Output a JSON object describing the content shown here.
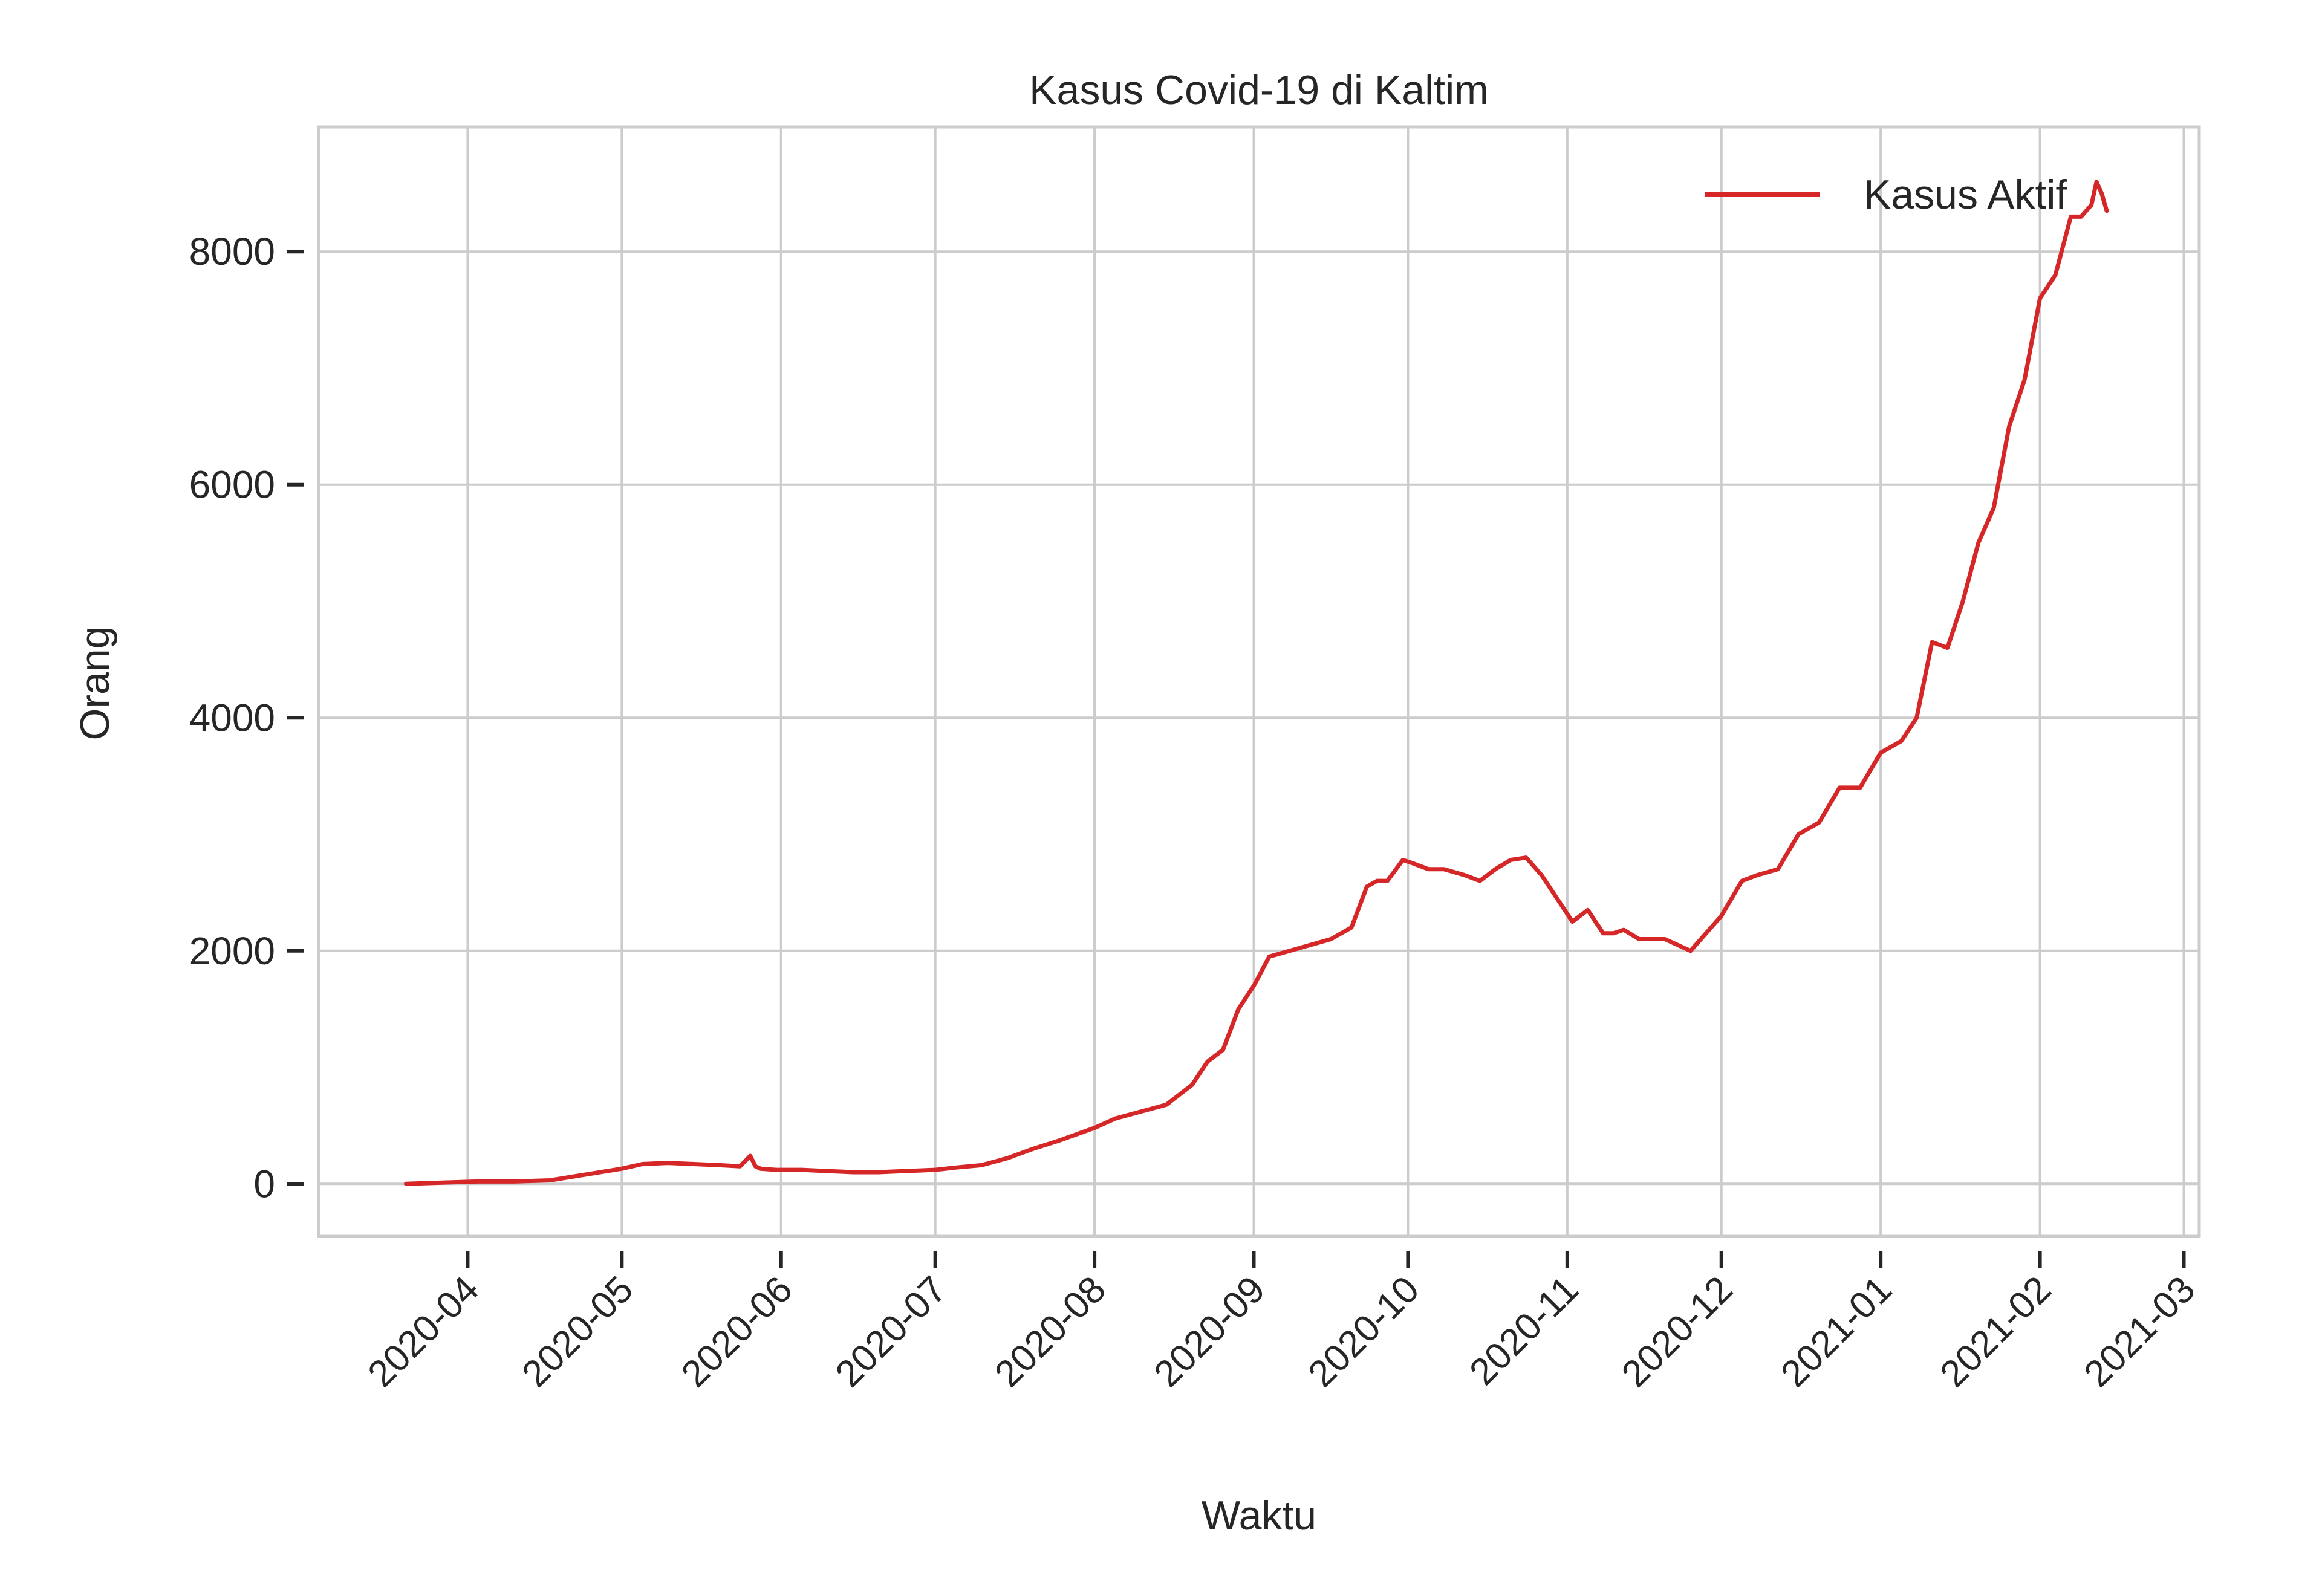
{
  "chart_data": {
    "type": "line",
    "title": "Kasus Covid-19 di Kaltim",
    "xlabel": "Waktu",
    "ylabel": "Orang",
    "ylim": [
      -450,
      9070
    ],
    "xlim": [
      "2020-03-03",
      "2021-03-04"
    ],
    "grid": true,
    "legend_position": "top-right",
    "line_color": "#d62728",
    "x_ticks": [
      "2020-04",
      "2020-05",
      "2020-06",
      "2020-07",
      "2020-08",
      "2020-09",
      "2020-10",
      "2020-11",
      "2020-12",
      "2021-01",
      "2021-02",
      "2021-03"
    ],
    "x_tick_dates": [
      "2020-04-01",
      "2020-05-01",
      "2020-06-01",
      "2020-07-01",
      "2020-08-01",
      "2020-09-01",
      "2020-10-01",
      "2020-11-01",
      "2020-12-01",
      "2021-01-01",
      "2021-02-01",
      "2021-03-01"
    ],
    "y_ticks": [
      0,
      2000,
      4000,
      6000,
      8000
    ],
    "y_tick_labels": [
      "0",
      "2000",
      "4000",
      "6000",
      "8000"
    ],
    "series": [
      {
        "name": "Kasus Aktif",
        "x": [
          "2020-03-20",
          "2020-03-27",
          "2020-04-03",
          "2020-04-10",
          "2020-04-17",
          "2020-04-24",
          "2020-05-01",
          "2020-05-05",
          "2020-05-10",
          "2020-05-15",
          "2020-05-20",
          "2020-05-24",
          "2020-05-26",
          "2020-05-27",
          "2020-05-28",
          "2020-05-31",
          "2020-06-05",
          "2020-06-10",
          "2020-06-15",
          "2020-06-20",
          "2020-06-25",
          "2020-07-01",
          "2020-07-05",
          "2020-07-10",
          "2020-07-15",
          "2020-07-20",
          "2020-07-25",
          "2020-08-01",
          "2020-08-05",
          "2020-08-10",
          "2020-08-15",
          "2020-08-20",
          "2020-08-23",
          "2020-08-26",
          "2020-08-29",
          "2020-09-01",
          "2020-09-04",
          "2020-09-08",
          "2020-09-12",
          "2020-09-16",
          "2020-09-20",
          "2020-09-23",
          "2020-09-25",
          "2020-09-27",
          "2020-09-30",
          "2020-10-02",
          "2020-10-05",
          "2020-10-08",
          "2020-10-12",
          "2020-10-15",
          "2020-10-18",
          "2020-10-21",
          "2020-10-24",
          "2020-10-27",
          "2020-10-30",
          "2020-11-02",
          "2020-11-05",
          "2020-11-08",
          "2020-11-10",
          "2020-11-12",
          "2020-11-15",
          "2020-11-20",
          "2020-11-25",
          "2020-11-27",
          "2020-11-29",
          "2020-12-01",
          "2020-12-05",
          "2020-12-08",
          "2020-12-12",
          "2020-12-16",
          "2020-12-20",
          "2020-12-24",
          "2020-12-28",
          "2021-01-01",
          "2021-01-05",
          "2021-01-08",
          "2021-01-11",
          "2021-01-14",
          "2021-01-17",
          "2021-01-20",
          "2021-01-23",
          "2021-01-26",
          "2021-01-29",
          "2021-02-01",
          "2021-02-04",
          "2021-02-07",
          "2021-02-09",
          "2021-02-11",
          "2021-02-12",
          "2021-02-13",
          "2021-02-14"
        ],
        "y": [
          0,
          10,
          20,
          20,
          30,
          80,
          130,
          170,
          180,
          170,
          160,
          150,
          240,
          150,
          130,
          120,
          120,
          110,
          100,
          100,
          110,
          120,
          140,
          160,
          220,
          300,
          370,
          480,
          560,
          620,
          680,
          850,
          1050,
          1150,
          1500,
          1700,
          1950,
          2000,
          2050,
          2100,
          2200,
          2550,
          2600,
          2600,
          2780,
          2750,
          2700,
          2700,
          2650,
          2600,
          2700,
          2780,
          2800,
          2650,
          2450,
          2250,
          2350,
          2150,
          2150,
          2180,
          2100,
          2100,
          2000,
          2100,
          2200,
          2300,
          2600,
          2650,
          2700,
          3000,
          3100,
          3400,
          3400,
          3700,
          3800,
          4000,
          4650,
          4600,
          5000,
          5500,
          5800,
          6500,
          6900,
          7600,
          7800,
          8300,
          8300,
          8400,
          8600,
          8500,
          8350
        ]
      }
    ]
  }
}
